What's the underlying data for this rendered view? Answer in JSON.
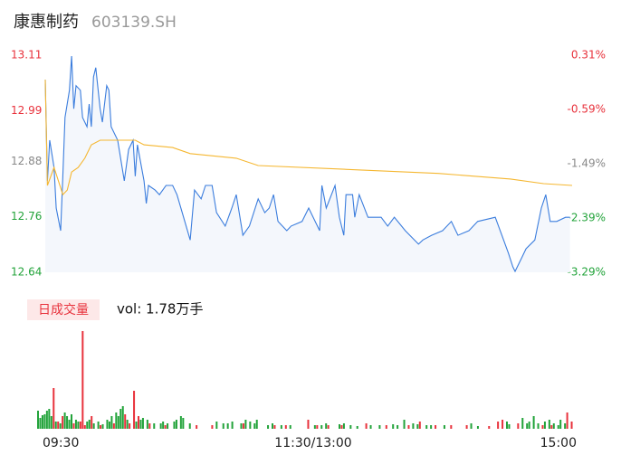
{
  "chart_data": [
    {
      "type": "line",
      "title": "康惠制药",
      "subtitle": "603139.SH",
      "xlim": [
        0,
        240
      ],
      "ylim": [
        12.64,
        13.11
      ],
      "yticks": [
        12.64,
        12.76,
        12.88,
        12.99,
        13.11
      ],
      "ytick_colors": [
        "#22a33a",
        "#22a33a",
        "#888888",
        "#e8323c",
        "#e8323c"
      ],
      "y2lim": [
        -3.29,
        0.31
      ],
      "y2ticks": [
        {
          "value": -3.29,
          "label": "-3.29%"
        },
        {
          "value": -2.39,
          "label": "-2.39%"
        },
        {
          "value": -1.49,
          "label": "-1.49%"
        },
        {
          "value": -0.59,
          "label": "-0.59%"
        },
        {
          "value": 0.31,
          "label": "0.31%"
        }
      ],
      "area_color": "#f4f7fc",
      "series": [
        {
          "color": "#3b7ddd",
          "x": [
            0,
            1,
            2,
            4,
            5,
            7,
            8,
            9,
            11,
            12,
            13,
            14,
            16,
            17,
            19,
            20,
            21,
            22,
            23,
            25,
            26,
            28,
            29,
            30,
            33,
            36,
            38,
            40,
            41,
            42,
            45,
            46,
            47,
            50,
            52,
            55,
            58,
            60,
            63,
            66,
            68,
            71,
            73,
            76,
            78,
            82,
            85,
            87,
            90,
            93,
            97,
            100,
            102,
            104,
            106,
            110,
            112,
            117,
            120,
            125,
            126,
            128,
            132,
            134,
            136,
            137,
            140,
            141,
            143,
            147,
            151,
            153,
            156,
            159,
            164,
            170,
            172,
            176,
            181,
            185,
            188,
            193,
            197,
            205,
            208,
            211,
            213,
            214,
            217,
            219,
            223,
            226,
            228,
            230,
            233,
            237,
            239
          ],
          "values": [
            13.057,
            12.838,
            12.926,
            12.867,
            12.779,
            12.73,
            12.848,
            12.975,
            13.034,
            13.108,
            12.994,
            13.044,
            13.034,
            12.975,
            12.955,
            13.004,
            12.955,
            13.063,
            13.083,
            12.994,
            12.965,
            13.044,
            13.034,
            12.955,
            12.926,
            12.838,
            12.906,
            12.926,
            12.848,
            12.916,
            12.838,
            12.789,
            12.828,
            12.818,
            12.808,
            12.828,
            12.828,
            12.808,
            12.759,
            12.71,
            12.818,
            12.799,
            12.828,
            12.828,
            12.769,
            12.74,
            12.779,
            12.808,
            12.72,
            12.74,
            12.799,
            12.769,
            12.779,
            12.808,
            12.75,
            12.73,
            12.74,
            12.75,
            12.779,
            12.73,
            12.828,
            12.779,
            12.828,
            12.759,
            12.72,
            12.808,
            12.808,
            12.759,
            12.808,
            12.759,
            12.759,
            12.759,
            12.74,
            12.759,
            12.73,
            12.701,
            12.71,
            12.72,
            12.73,
            12.75,
            12.72,
            12.73,
            12.75,
            12.759,
            12.72,
            12.681,
            12.652,
            12.642,
            12.671,
            12.691,
            12.71,
            12.779,
            12.808,
            12.75,
            12.75,
            12.759,
            12.759
          ]
        },
        {
          "color": "#f5b731",
          "x": [
            0,
            1,
            4,
            6,
            8,
            10,
            12,
            15,
            18,
            21,
            25,
            41,
            45,
            58,
            66,
            87,
            97,
            136,
            179,
            212,
            227,
            240
          ],
          "values": [
            13.057,
            12.828,
            12.867,
            12.838,
            12.808,
            12.818,
            12.857,
            12.867,
            12.887,
            12.916,
            12.926,
            12.926,
            12.916,
            12.91,
            12.897,
            12.887,
            12.871,
            12.863,
            12.854,
            12.842,
            12.832,
            12.828
          ]
        }
      ]
    },
    {
      "type": "bar",
      "label": "日成交量",
      "annotation": "vol: 1.78万手",
      "xlim": [
        0,
        240
      ],
      "xticks": [
        {
          "value": 0,
          "label": "09:30"
        },
        {
          "value": 120,
          "label": "11:30/13:00"
        },
        {
          "value": 240,
          "label": "15:00"
        }
      ],
      "series": [
        {
          "color": "#e8323c",
          "x": [
            7,
            9,
            11,
            16,
            19,
            20,
            21,
            24,
            28,
            34,
            39,
            41,
            43,
            45,
            50,
            57,
            71,
            78,
            92,
            106,
            111,
            121,
            125,
            130,
            136,
            147,
            156,
            166,
            171,
            178,
            185,
            192,
            202,
            206,
            208,
            215,
            226,
            230,
            237,
            239
          ],
          "values": [
            45,
            8,
            14,
            6,
            8,
            108,
            4,
            14,
            4,
            6,
            16,
            6,
            42,
            14,
            6,
            4,
            4,
            4,
            6,
            4,
            4,
            10,
            4,
            4,
            4,
            6,
            4,
            4,
            8,
            4,
            4,
            4,
            3,
            8,
            10,
            6,
            4,
            4,
            18,
            8
          ]
        },
        {
          "color": "#22a33a",
          "x": [
            0,
            1,
            2,
            3,
            4,
            5,
            6,
            8,
            10,
            12,
            13,
            14,
            15,
            17,
            18,
            22,
            23,
            25,
            27,
            29,
            31,
            32,
            33,
            35,
            36,
            37,
            38,
            40,
            44,
            46,
            47,
            49,
            52,
            55,
            56,
            58,
            61,
            62,
            64,
            65,
            68,
            80,
            83,
            85,
            87,
            91,
            93,
            95,
            97,
            98,
            103,
            105,
            109,
            113,
            124,
            127,
            129,
            135,
            137,
            140,
            143,
            149,
            153,
            159,
            161,
            164,
            168,
            170,
            174,
            176,
            182,
            194,
            197,
            210,
            211,
            217,
            219,
            220,
            222,
            224,
            227,
            229,
            231,
            233,
            234,
            236
          ],
          "values": [
            20,
            12,
            15,
            16,
            20,
            22,
            14,
            8,
            6,
            18,
            14,
            10,
            16,
            10,
            8,
            8,
            10,
            6,
            8,
            5,
            10,
            8,
            14,
            18,
            14,
            22,
            25,
            10,
            8,
            10,
            12,
            10,
            6,
            6,
            8,
            6,
            8,
            10,
            14,
            12,
            6,
            8,
            6,
            6,
            8,
            6,
            10,
            8,
            6,
            10,
            4,
            6,
            4,
            4,
            4,
            4,
            6,
            5,
            6,
            4,
            3,
            4,
            4,
            5,
            4,
            10,
            6,
            5,
            4,
            4,
            4,
            6,
            3,
            8,
            5,
            12,
            6,
            8,
            14,
            6,
            8,
            10,
            6,
            4,
            10,
            6
          ]
        }
      ]
    }
  ]
}
